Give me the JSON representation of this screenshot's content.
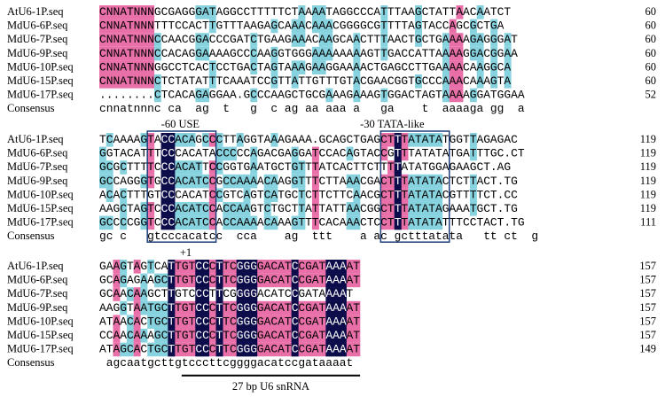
{
  "blocks": [
    {
      "rows": [
        {
          "name": "AtU6-1P.seq",
          "sequence": "CNNATNNNGCGAGGGATAGGCCTTTTTCTAAAATAGGCCCATTTAAGCTATTAACAATCT",
          "end": 60
        },
        {
          "name": "MdU6-6P.seq",
          "sequence": "CNNATNNNTTTCCACTTGTTTAAGAGCAAACAAACGGGGCGTTTTAGTACCAGCGCTGA",
          "end": 60
        },
        {
          "name": "MdU6-7P.seq",
          "sequence": "CNNATNNNCCAACGGACCCGATCTGAAGAAACAAGCAACTTTAACTGCTGAAAAGAGGGAT",
          "end": 60
        },
        {
          "name": "MdU6-9P.seq",
          "sequence": "CNNATNNNCCACAGGAAAAGCCCAAGGTGGGAAAAAAAAGTTGACCATTAAAAGGACGGAA",
          "end": 60
        },
        {
          "name": "MdU6-10P.seq",
          "sequence": "CNNATNNNGGCCTCACTCCTGACTAGTAAAGAAGGAAAACTGAGCCTTGAAAACAAGGCA",
          "end": 60
        },
        {
          "name": "MdU6-15P.seq",
          "sequence": "CNNATNNNCTCTATATTTCAAATCCGTTATTGTTTGTACGAACGGTGCCCAAACAAAGTA",
          "end": 60
        },
        {
          "name": "MdU6-17P.seq",
          "sequence": "........CTCACAGAGGAA.GCCCAAGCTGCGAAAGAAAGTGGACTAGTAAAAGGATGGAA",
          "end": 52
        }
      ],
      "consensus": {
        "label": "Consensus",
        "sequence": "cnnatnnnc ca  ag  t   g  c ag aa aaa a   ga    t  aaaaga gg  a"
      }
    },
    {
      "rows": [
        {
          "name": "AtU6-1P.seq",
          "sequence": "TCAAAAGTACCACAGCCCTTAGGTAAAGAAA.GCAGCTGAGCTTTATATATGGTTAGAGAC",
          "end": 119
        },
        {
          "name": "MdU6-6P.seq",
          "sequence": "GGTACATTTCCCACATACCCCCAGACGAGGATCCACAGTACCGTTTATATATGATTTGC.CT",
          "end": 119
        },
        {
          "name": "MdU6-7P.seq",
          "sequence": "GCGCTTTTCCCACATTCCGGTGAATGCTGTTTATCACTTCTTTTATATGGAGAAGCT.AG",
          "end": 119
        },
        {
          "name": "MdU6-9P.seq",
          "sequence": "GCCAGGGTGCCACATCCGCCAAAACAAGGTTTCTTAAACGACTTTATATACTCTTACT.TG",
          "end": 119
        },
        {
          "name": "MdU6-10P.seq",
          "sequence": "ACACTTTGTCCCACATCCGTCAGTCATGCTCTTCTTCAACGCTTTATATACGTTTTCT.CC",
          "end": 119
        },
        {
          "name": "MdU6-15P.seq",
          "sequence": "AAGCTAGTCCCACATCCACCAAGTCTGCTTATTATTAACGGCTTTATATAGAAATGCT.TG",
          "end": 119
        },
        {
          "name": "MdU6-17P.seq",
          "sequence": "GCCCCGGTCCCACATCCACCAAAACAAAGTTTCACAAACTCCTTTATATATTTCCTACT.TG",
          "end": 111
        }
      ],
      "consensus": {
        "label": "Consensus",
        "sequence": "gc c   gtcccacatcc  cca    ag  ttt    a ac gctttatata   tt ct  g"
      }
    },
    {
      "rows": [
        {
          "name": "AtU6-1P.seq",
          "sequence": "GAAGTAGTCATTGTCCCTTCGGGGACATCCGATAAAAT",
          "end": 157
        },
        {
          "name": "MdU6-6P.seq",
          "sequence": "GCAGAGAAGCTTGTCCCTTCGGGGACATCCGATAAAAT",
          "end": 157
        },
        {
          "name": "MdU6-7P.seq",
          "sequence": "GCAACAAGCTTGTCCCTTCGGGGACATCCGATAAAAT",
          "end": 157
        },
        {
          "name": "MdU6-9P.seq",
          "sequence": "AAGGTAATGCTTGTCCCTTCGGGGACATCCGATAAAAT",
          "end": 157
        },
        {
          "name": "MdU6-10P.seq",
          "sequence": "ATAACACTGCTTGTCCCTTCGGGGACATCCGATAAAAT",
          "end": 157
        },
        {
          "name": "MdU6-15P.seq",
          "sequence": "CCAACAAAGCTTGTCCCTTCGGGGACATCCGATAAAAT",
          "end": 157
        },
        {
          "name": "MdU6-17P.seq",
          "sequence": "ATAGCACTGCTTGTCCCTTCGGGGACATCCGATAAAAT",
          "end": 149
        }
      ],
      "consensus": {
        "label": "Consensus",
        "sequence": " agcaatgcttgtcccttcggggacatccgataaaat"
      }
    }
  ],
  "annotations": {
    "use": "-60 USE",
    "tata": "-30 TATA-like",
    "start": "+1",
    "snrna": "27 bp U6 snRNA"
  }
}
